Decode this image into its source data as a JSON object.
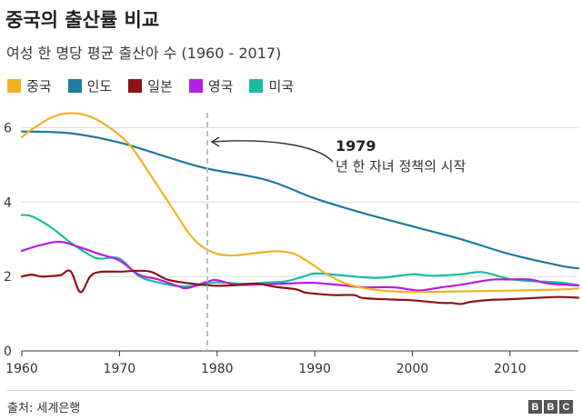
{
  "title": "중국의 출산률 비교",
  "subtitle": "여성 한 명당 평균 출산아 수 (1960 - 2017)",
  "source": "출처: 세계은행",
  "logo": [
    "B",
    "B",
    "C"
  ],
  "chart_data": {
    "type": "line",
    "xlim": [
      1960,
      2017
    ],
    "ylim": [
      0,
      6.5
    ],
    "x_ticks": [
      "1960",
      "1970",
      "1980",
      "1990",
      "2000",
      "2010"
    ],
    "y_ticks": [
      "0",
      "2",
      "4",
      "6"
    ],
    "grid": "horizontal",
    "annotation": {
      "x": 1979,
      "year_label": "1979",
      "text": "년 한 자녀 정책의 시작"
    },
    "series": [
      {
        "name": "중국",
        "color": "#f0b323",
        "points": [
          [
            1960,
            5.75
          ],
          [
            1961,
            5.95
          ],
          [
            1962,
            6.12
          ],
          [
            1963,
            6.27
          ],
          [
            1964,
            6.36
          ],
          [
            1965,
            6.39
          ],
          [
            1966,
            6.37
          ],
          [
            1967,
            6.3
          ],
          [
            1968,
            6.17
          ],
          [
            1969,
            6.0
          ],
          [
            1970,
            5.8
          ],
          [
            1971,
            5.55
          ],
          [
            1972,
            5.2
          ],
          [
            1973,
            4.8
          ],
          [
            1974,
            4.4
          ],
          [
            1975,
            4.0
          ],
          [
            1976,
            3.6
          ],
          [
            1977,
            3.2
          ],
          [
            1978,
            2.9
          ],
          [
            1979,
            2.72
          ],
          [
            1980,
            2.61
          ],
          [
            1981,
            2.57
          ],
          [
            1982,
            2.57
          ],
          [
            1983,
            2.6
          ],
          [
            1984,
            2.63
          ],
          [
            1985,
            2.66
          ],
          [
            1986,
            2.68
          ],
          [
            1987,
            2.66
          ],
          [
            1988,
            2.6
          ],
          [
            1989,
            2.45
          ],
          [
            1990,
            2.28
          ],
          [
            1991,
            2.1
          ],
          [
            1992,
            1.95
          ],
          [
            1993,
            1.83
          ],
          [
            1994,
            1.75
          ],
          [
            1995,
            1.69
          ],
          [
            1996,
            1.65
          ],
          [
            1997,
            1.62
          ],
          [
            1998,
            1.6
          ],
          [
            1999,
            1.59
          ],
          [
            2000,
            1.58
          ],
          [
            2005,
            1.6
          ],
          [
            2010,
            1.62
          ],
          [
            2015,
            1.65
          ],
          [
            2017,
            1.68
          ]
        ]
      },
      {
        "name": "인도",
        "color": "#1f7a9e",
        "points": [
          [
            1960,
            5.9
          ],
          [
            1965,
            5.85
          ],
          [
            1970,
            5.6
          ],
          [
            1975,
            5.2
          ],
          [
            1979,
            4.9
          ],
          [
            1985,
            4.6
          ],
          [
            1990,
            4.1
          ],
          [
            1995,
            3.7
          ],
          [
            2000,
            3.35
          ],
          [
            2005,
            3.0
          ],
          [
            2010,
            2.6
          ],
          [
            2015,
            2.3
          ],
          [
            2017,
            2.22
          ]
        ]
      },
      {
        "name": "일본",
        "color": "#8b1416",
        "points": [
          [
            1960,
            2.0
          ],
          [
            1961,
            2.05
          ],
          [
            1962,
            2.0
          ],
          [
            1963,
            2.01
          ],
          [
            1964,
            2.04
          ],
          [
            1965,
            2.14
          ],
          [
            1966,
            1.58
          ],
          [
            1967,
            2.0
          ],
          [
            1968,
            2.12
          ],
          [
            1970,
            2.13
          ],
          [
            1973,
            2.14
          ],
          [
            1975,
            1.91
          ],
          [
            1978,
            1.79
          ],
          [
            1980,
            1.75
          ],
          [
            1982,
            1.77
          ],
          [
            1984,
            1.81
          ],
          [
            1986,
            1.72
          ],
          [
            1988,
            1.66
          ],
          [
            1989,
            1.57
          ],
          [
            1990,
            1.54
          ],
          [
            1992,
            1.5
          ],
          [
            1994,
            1.5
          ],
          [
            1995,
            1.42
          ],
          [
            1998,
            1.38
          ],
          [
            2000,
            1.36
          ],
          [
            2003,
            1.29
          ],
          [
            2004,
            1.29
          ],
          [
            2005,
            1.26
          ],
          [
            2006,
            1.32
          ],
          [
            2008,
            1.37
          ],
          [
            2010,
            1.39
          ],
          [
            2013,
            1.43
          ],
          [
            2015,
            1.45
          ],
          [
            2017,
            1.43
          ]
        ]
      },
      {
        "name": "영국",
        "color": "#b61ee0",
        "points": [
          [
            1960,
            2.69
          ],
          [
            1962,
            2.85
          ],
          [
            1964,
            2.93
          ],
          [
            1966,
            2.78
          ],
          [
            1968,
            2.6
          ],
          [
            1970,
            2.43
          ],
          [
            1972,
            2.05
          ],
          [
            1974,
            1.92
          ],
          [
            1976,
            1.74
          ],
          [
            1977,
            1.69
          ],
          [
            1979,
            1.86
          ],
          [
            1980,
            1.9
          ],
          [
            1982,
            1.78
          ],
          [
            1985,
            1.79
          ],
          [
            1988,
            1.82
          ],
          [
            1990,
            1.83
          ],
          [
            1993,
            1.76
          ],
          [
            1995,
            1.71
          ],
          [
            1998,
            1.71
          ],
          [
            2000,
            1.64
          ],
          [
            2001,
            1.63
          ],
          [
            2003,
            1.71
          ],
          [
            2005,
            1.78
          ],
          [
            2008,
            1.91
          ],
          [
            2010,
            1.92
          ],
          [
            2012,
            1.92
          ],
          [
            2014,
            1.81
          ],
          [
            2017,
            1.76
          ]
        ]
      },
      {
        "name": "미국",
        "color": "#1abc9c",
        "points": [
          [
            1960,
            3.65
          ],
          [
            1961,
            3.62
          ],
          [
            1963,
            3.32
          ],
          [
            1965,
            2.91
          ],
          [
            1967,
            2.57
          ],
          [
            1968,
            2.48
          ],
          [
            1970,
            2.48
          ],
          [
            1972,
            2.01
          ],
          [
            1974,
            1.84
          ],
          [
            1976,
            1.74
          ],
          [
            1978,
            1.76
          ],
          [
            1980,
            1.84
          ],
          [
            1983,
            1.8
          ],
          [
            1985,
            1.84
          ],
          [
            1987,
            1.87
          ],
          [
            1989,
            2.01
          ],
          [
            1990,
            2.08
          ],
          [
            1992,
            2.05
          ],
          [
            1995,
            1.98
          ],
          [
            1997,
            1.97
          ],
          [
            2000,
            2.06
          ],
          [
            2002,
            2.02
          ],
          [
            2005,
            2.06
          ],
          [
            2007,
            2.12
          ],
          [
            2009,
            2.0
          ],
          [
            2010,
            1.93
          ],
          [
            2012,
            1.88
          ],
          [
            2015,
            1.84
          ],
          [
            2017,
            1.77
          ]
        ]
      }
    ]
  }
}
